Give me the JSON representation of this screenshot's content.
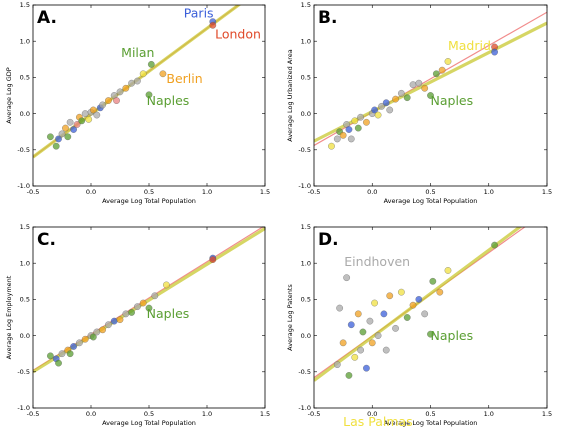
{
  "chart_data": [
    {
      "type": "scatter",
      "panel_label": "A.",
      "xlabel": "Average Log Total Population",
      "ylabel": "Average Log GDP",
      "xlim": [
        -0.5,
        1.5
      ],
      "ylim": [
        -1.0,
        1.5
      ],
      "x_ticks": [
        "-0.5",
        "0.0",
        "0.5",
        "1.0",
        "1.5"
      ],
      "y_ticks": [
        "-1.0",
        "-0.5",
        "0.0",
        "0.5",
        "1.0",
        "1.5"
      ],
      "fit_lines": [
        {
          "color": "#f08080",
          "x": [
            -0.5,
            1.5
          ],
          "y": [
            -0.6,
            1.77
          ]
        },
        {
          "color": "#c8c830",
          "x": [
            -0.5,
            1.5
          ],
          "y": [
            -0.6,
            1.77
          ]
        }
      ],
      "annotations": [
        {
          "text": "Paris",
          "x": 0.8,
          "y": 1.33,
          "color": "#3b5fd9"
        },
        {
          "text": "London",
          "x": 1.07,
          "y": 1.04,
          "color": "#e04a2a"
        },
        {
          "text": "Milan",
          "x": 0.26,
          "y": 0.78,
          "color": "#5a9e32"
        },
        {
          "text": "Berlin",
          "x": 0.65,
          "y": 0.42,
          "color": "#f0a020"
        },
        {
          "text": "Naples",
          "x": 0.48,
          "y": 0.12,
          "color": "#5a9e32"
        }
      ],
      "points": [
        {
          "x": -0.35,
          "y": -0.32,
          "c": "#5a9e32"
        },
        {
          "x": -0.3,
          "y": -0.45,
          "c": "#5a9e32"
        },
        {
          "x": -0.28,
          "y": -0.35,
          "c": "#3b5fd9"
        },
        {
          "x": -0.25,
          "y": -0.28,
          "c": "#aaaaaa"
        },
        {
          "x": -0.22,
          "y": -0.2,
          "c": "#f0a020"
        },
        {
          "x": -0.2,
          "y": -0.32,
          "c": "#5a9e32"
        },
        {
          "x": -0.18,
          "y": -0.12,
          "c": "#aaaaaa"
        },
        {
          "x": -0.15,
          "y": -0.22,
          "c": "#3b5fd9"
        },
        {
          "x": -0.12,
          "y": -0.15,
          "c": "#e88080"
        },
        {
          "x": -0.1,
          "y": -0.05,
          "c": "#f0a020"
        },
        {
          "x": -0.08,
          "y": -0.1,
          "c": "#5a9e32"
        },
        {
          "x": -0.05,
          "y": 0.0,
          "c": "#aaaaaa"
        },
        {
          "x": -0.02,
          "y": -0.08,
          "c": "#f0e040"
        },
        {
          "x": 0.0,
          "y": 0.02,
          "c": "#aaaaaa"
        },
        {
          "x": 0.02,
          "y": 0.05,
          "c": "#f0a020"
        },
        {
          "x": 0.05,
          "y": -0.02,
          "c": "#aaaaaa"
        },
        {
          "x": 0.08,
          "y": 0.08,
          "c": "#3b5fd9"
        },
        {
          "x": 0.1,
          "y": 0.12,
          "c": "#aaaaaa"
        },
        {
          "x": 0.15,
          "y": 0.18,
          "c": "#f0a020"
        },
        {
          "x": 0.2,
          "y": 0.25,
          "c": "#aaaaaa"
        },
        {
          "x": 0.22,
          "y": 0.18,
          "c": "#e88080"
        },
        {
          "x": 0.25,
          "y": 0.3,
          "c": "#aaaaaa"
        },
        {
          "x": 0.3,
          "y": 0.35,
          "c": "#f0a020"
        },
        {
          "x": 0.35,
          "y": 0.42,
          "c": "#aaaaaa"
        },
        {
          "x": 0.4,
          "y": 0.45,
          "c": "#aaaaaa"
        },
        {
          "x": 0.45,
          "y": 0.55,
          "c": "#f0e040"
        },
        {
          "x": 0.5,
          "y": 0.26,
          "c": "#5a9e32"
        },
        {
          "x": 0.52,
          "y": 0.68,
          "c": "#5a9e32"
        },
        {
          "x": 0.62,
          "y": 0.55,
          "c": "#f0a020"
        },
        {
          "x": 1.05,
          "y": 1.27,
          "c": "#3b5fd9"
        },
        {
          "x": 1.05,
          "y": 1.22,
          "c": "#e04a2a"
        }
      ]
    },
    {
      "type": "scatter",
      "panel_label": "B.",
      "xlabel": "Average Log Total Population",
      "ylabel": "Average Log Urbanized Area",
      "xlim": [
        -0.5,
        1.5
      ],
      "ylim": [
        -1.0,
        1.5
      ],
      "x_ticks": [
        "-0.5",
        "0.0",
        "0.5",
        "1.0",
        "1.5"
      ],
      "y_ticks": [
        "-1.0",
        "-0.5",
        "0.0",
        "0.5",
        "1.0",
        "1.5"
      ],
      "fit_lines": [
        {
          "color": "#f08080",
          "x": [
            -0.5,
            1.5
          ],
          "y": [
            -0.44,
            1.4
          ]
        },
        {
          "color": "#c8c830",
          "x": [
            -0.5,
            1.5
          ],
          "y": [
            -0.38,
            1.25
          ]
        }
      ],
      "annotations": [
        {
          "text": "Madrid",
          "x": 0.65,
          "y": 0.88,
          "color": "#f0e040"
        },
        {
          "text": "Naples",
          "x": 0.5,
          "y": 0.12,
          "color": "#5a9e32"
        }
      ],
      "points": [
        {
          "x": -0.35,
          "y": -0.45,
          "c": "#f0e040"
        },
        {
          "x": -0.3,
          "y": -0.35,
          "c": "#aaaaaa"
        },
        {
          "x": -0.28,
          "y": -0.25,
          "c": "#5a9e32"
        },
        {
          "x": -0.25,
          "y": -0.3,
          "c": "#f0a020"
        },
        {
          "x": -0.22,
          "y": -0.15,
          "c": "#aaaaaa"
        },
        {
          "x": -0.2,
          "y": -0.22,
          "c": "#3b5fd9"
        },
        {
          "x": -0.18,
          "y": -0.35,
          "c": "#aaaaaa"
        },
        {
          "x": -0.15,
          "y": -0.1,
          "c": "#f0e040"
        },
        {
          "x": -0.12,
          "y": -0.2,
          "c": "#5a9e32"
        },
        {
          "x": -0.1,
          "y": -0.05,
          "c": "#aaaaaa"
        },
        {
          "x": -0.05,
          "y": -0.12,
          "c": "#f0a020"
        },
        {
          "x": 0.0,
          "y": 0.0,
          "c": "#aaaaaa"
        },
        {
          "x": 0.02,
          "y": 0.05,
          "c": "#3b5fd9"
        },
        {
          "x": 0.05,
          "y": -0.02,
          "c": "#f0e040"
        },
        {
          "x": 0.08,
          "y": 0.1,
          "c": "#aaaaaa"
        },
        {
          "x": 0.12,
          "y": 0.15,
          "c": "#3b5fd9"
        },
        {
          "x": 0.15,
          "y": 0.05,
          "c": "#aaaaaa"
        },
        {
          "x": 0.2,
          "y": 0.2,
          "c": "#f0a020"
        },
        {
          "x": 0.25,
          "y": 0.28,
          "c": "#aaaaaa"
        },
        {
          "x": 0.3,
          "y": 0.22,
          "c": "#5a9e32"
        },
        {
          "x": 0.35,
          "y": 0.4,
          "c": "#aaaaaa"
        },
        {
          "x": 0.4,
          "y": 0.42,
          "c": "#aaaaaa"
        },
        {
          "x": 0.45,
          "y": 0.35,
          "c": "#f0a020"
        },
        {
          "x": 0.5,
          "y": 0.25,
          "c": "#5a9e32"
        },
        {
          "x": 0.55,
          "y": 0.55,
          "c": "#5a9e32"
        },
        {
          "x": 0.6,
          "y": 0.6,
          "c": "#f0a020"
        },
        {
          "x": 0.65,
          "y": 0.72,
          "c": "#f0e040"
        },
        {
          "x": 1.05,
          "y": 0.92,
          "c": "#e04a2a"
        },
        {
          "x": 1.05,
          "y": 0.85,
          "c": "#3b5fd9"
        }
      ]
    },
    {
      "type": "scatter",
      "panel_label": "C.",
      "xlabel": "Average Log Total Population",
      "ylabel": "Average Log Employment",
      "xlim": [
        -0.5,
        1.5
      ],
      "ylim": [
        -1.0,
        1.5
      ],
      "x_ticks": [
        "-0.5",
        "0.0",
        "0.5",
        "1.0",
        "1.5"
      ],
      "y_ticks": [
        "-1.0",
        "-0.5",
        "0.0",
        "0.5",
        "1.0",
        "1.5"
      ],
      "fit_lines": [
        {
          "color": "#f08080",
          "x": [
            -0.5,
            1.5
          ],
          "y": [
            -0.48,
            1.52
          ]
        },
        {
          "color": "#c8c830",
          "x": [
            -0.5,
            1.5
          ],
          "y": [
            -0.5,
            1.48
          ]
        }
      ],
      "annotations": [
        {
          "text": "Naples",
          "x": 0.48,
          "y": 0.24,
          "color": "#5a9e32"
        }
      ],
      "points": [
        {
          "x": -0.35,
          "y": -0.28,
          "c": "#5a9e32"
        },
        {
          "x": -0.3,
          "y": -0.32,
          "c": "#3b5fd9"
        },
        {
          "x": -0.28,
          "y": -0.38,
          "c": "#5a9e32"
        },
        {
          "x": -0.25,
          "y": -0.25,
          "c": "#aaaaaa"
        },
        {
          "x": -0.2,
          "y": -0.2,
          "c": "#f0a020"
        },
        {
          "x": -0.18,
          "y": -0.25,
          "c": "#5a9e32"
        },
        {
          "x": -0.15,
          "y": -0.15,
          "c": "#3b5fd9"
        },
        {
          "x": -0.1,
          "y": -0.1,
          "c": "#aaaaaa"
        },
        {
          "x": -0.05,
          "y": -0.05,
          "c": "#f0a020"
        },
        {
          "x": 0.0,
          "y": 0.0,
          "c": "#aaaaaa"
        },
        {
          "x": 0.02,
          "y": -0.02,
          "c": "#5a9e32"
        },
        {
          "x": 0.05,
          "y": 0.05,
          "c": "#aaaaaa"
        },
        {
          "x": 0.1,
          "y": 0.08,
          "c": "#f0a020"
        },
        {
          "x": 0.15,
          "y": 0.15,
          "c": "#aaaaaa"
        },
        {
          "x": 0.2,
          "y": 0.2,
          "c": "#3b5fd9"
        },
        {
          "x": 0.25,
          "y": 0.22,
          "c": "#f0a020"
        },
        {
          "x": 0.3,
          "y": 0.3,
          "c": "#aaaaaa"
        },
        {
          "x": 0.35,
          "y": 0.32,
          "c": "#5a9e32"
        },
        {
          "x": 0.4,
          "y": 0.4,
          "c": "#aaaaaa"
        },
        {
          "x": 0.45,
          "y": 0.45,
          "c": "#f0a020"
        },
        {
          "x": 0.5,
          "y": 0.38,
          "c": "#5a9e32"
        },
        {
          "x": 0.55,
          "y": 0.55,
          "c": "#aaaaaa"
        },
        {
          "x": 0.65,
          "y": 0.7,
          "c": "#f0e040"
        },
        {
          "x": 1.05,
          "y": 1.07,
          "c": "#3b5fd9"
        },
        {
          "x": 1.05,
          "y": 1.05,
          "c": "#e04a2a"
        }
      ]
    },
    {
      "type": "scatter",
      "panel_label": "D.",
      "xlabel": "Average Log Total Population",
      "ylabel": "Average Log Patents",
      "xlim": [
        -0.5,
        1.5
      ],
      "ylim": [
        -1.0,
        1.5
      ],
      "x_ticks": [
        "-0.5",
        "0.0",
        "0.5",
        "1.0",
        "1.5"
      ],
      "y_ticks": [
        "-1.0",
        "-0.5",
        "0.0",
        "0.5",
        "1.0",
        "1.5"
      ],
      "fit_lines": [
        {
          "color": "#f08080",
          "x": [
            -0.5,
            1.5
          ],
          "y": [
            -0.58,
            1.72
          ]
        },
        {
          "color": "#c8c830",
          "x": [
            -0.5,
            1.5
          ],
          "y": [
            -0.62,
            1.78
          ]
        }
      ],
      "annotations": [
        {
          "text": "Eindhoven",
          "x": -0.24,
          "y": 0.96,
          "color": "#aaaaaa"
        },
        {
          "text": "Naples",
          "x": 0.5,
          "y": -0.06,
          "color": "#5a9e32"
        },
        {
          "text": "Las Palmas",
          "x": -0.25,
          "y": -1.25,
          "color": "#f0e040"
        }
      ],
      "points": [
        {
          "x": -0.35,
          "y": -1.1,
          "c": "#f0e040"
        },
        {
          "x": -0.3,
          "y": -0.4,
          "c": "#aaaaaa"
        },
        {
          "x": -0.28,
          "y": 0.38,
          "c": "#aaaaaa"
        },
        {
          "x": -0.25,
          "y": -0.1,
          "c": "#f0a020"
        },
        {
          "x": -0.22,
          "y": 0.8,
          "c": "#aaaaaa"
        },
        {
          "x": -0.2,
          "y": -0.55,
          "c": "#5a9e32"
        },
        {
          "x": -0.18,
          "y": 0.15,
          "c": "#3b5fd9"
        },
        {
          "x": -0.15,
          "y": -0.3,
          "c": "#f0e040"
        },
        {
          "x": -0.12,
          "y": 0.3,
          "c": "#f0a020"
        },
        {
          "x": -0.1,
          "y": -0.2,
          "c": "#aaaaaa"
        },
        {
          "x": -0.08,
          "y": 0.05,
          "c": "#5a9e32"
        },
        {
          "x": -0.05,
          "y": -0.45,
          "c": "#3b5fd9"
        },
        {
          "x": -0.02,
          "y": 0.2,
          "c": "#aaaaaa"
        },
        {
          "x": 0.0,
          "y": -0.1,
          "c": "#f0a020"
        },
        {
          "x": 0.02,
          "y": 0.45,
          "c": "#f0e040"
        },
        {
          "x": 0.05,
          "y": 0.0,
          "c": "#aaaaaa"
        },
        {
          "x": 0.1,
          "y": 0.3,
          "c": "#3b5fd9"
        },
        {
          "x": 0.12,
          "y": -0.2,
          "c": "#aaaaaa"
        },
        {
          "x": 0.15,
          "y": 0.55,
          "c": "#f0a020"
        },
        {
          "x": 0.2,
          "y": 0.1,
          "c": "#aaaaaa"
        },
        {
          "x": 0.25,
          "y": 0.6,
          "c": "#f0e040"
        },
        {
          "x": 0.3,
          "y": 0.25,
          "c": "#5a9e32"
        },
        {
          "x": 0.35,
          "y": 0.42,
          "c": "#f0a020"
        },
        {
          "x": 0.4,
          "y": 0.5,
          "c": "#3b5fd9"
        },
        {
          "x": 0.45,
          "y": 0.3,
          "c": "#aaaaaa"
        },
        {
          "x": 0.5,
          "y": 0.02,
          "c": "#5a9e32"
        },
        {
          "x": 0.52,
          "y": 0.75,
          "c": "#5a9e32"
        },
        {
          "x": 0.58,
          "y": 0.6,
          "c": "#f0a020"
        },
        {
          "x": 0.65,
          "y": 0.9,
          "c": "#f0e040"
        },
        {
          "x": 1.05,
          "y": 1.25,
          "c": "#5a9e32"
        }
      ]
    }
  ]
}
